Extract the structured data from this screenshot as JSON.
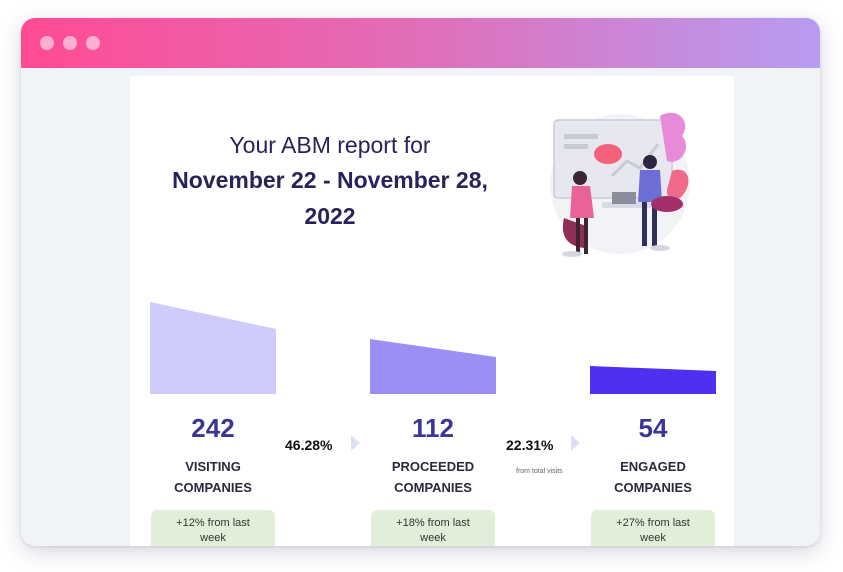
{
  "window": {
    "title_dots": [
      "dot-1",
      "dot-2",
      "dot-3"
    ]
  },
  "report": {
    "title_line1": "Your ABM report for",
    "title_line2": "November 22 - November 28,",
    "title_line3": "2022"
  },
  "colors": {
    "stage1": "#cfcbfb",
    "stage2": "#9b8ff5",
    "stage3": "#4f2ff0",
    "badge_bg": "#e2efd8",
    "title": "#28235a",
    "numbers": "#3b3696"
  },
  "stages": [
    {
      "value": "242",
      "label_line1": "VISITING",
      "label_line2": "COMPANIES",
      "change_line1": "+12% from last",
      "change_line2": "week"
    },
    {
      "value": "112",
      "label_line1": "PROCEEDED",
      "label_line2": "COMPANIES",
      "change_line1": "+18% from last",
      "change_line2": "week"
    },
    {
      "value": "54",
      "label_line1": "ENGAGED",
      "label_line2": "COMPANIES",
      "change_line1": "+27% from last",
      "change_line2": "week"
    }
  ],
  "conversions": [
    {
      "rate": "46.28%",
      "note": ""
    },
    {
      "rate": "22.31%",
      "note": "from total visits"
    }
  ]
}
